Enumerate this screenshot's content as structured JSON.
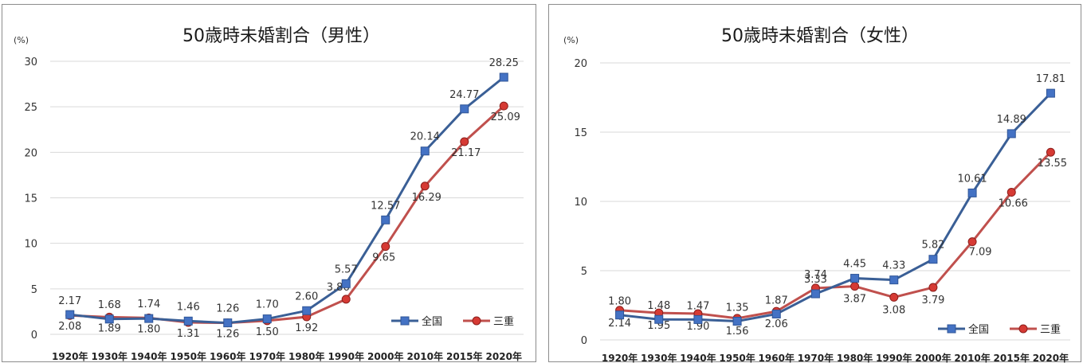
{
  "colors": {
    "national": "#4472c4",
    "national_line": "#3a5f96",
    "mie": "#c0504d",
    "mie_marker": "#d63a34"
  },
  "chart_data": [
    {
      "type": "line",
      "title": "50歳時未婚割合（男性）",
      "unit": "(%)",
      "categories": [
        "1920年",
        "1930年",
        "1940年",
        "1950年",
        "1960年",
        "1970年",
        "1980年",
        "1990年",
        "2000年",
        "2010年",
        "2015年",
        "2020年"
      ],
      "ylim": [
        0,
        30
      ],
      "yticks": [
        "0",
        "5",
        "10",
        "15",
        "20",
        "25",
        "30"
      ],
      "grid": true,
      "legend_position": "bottom-right",
      "series": [
        {
          "name": "全国",
          "values": [
            2.17,
            1.68,
            1.74,
            1.46,
            1.26,
            1.7,
            2.6,
            5.57,
            12.57,
            20.14,
            24.77,
            28.25
          ],
          "labels": [
            "2.17",
            "1.68",
            "1.74",
            "1.46",
            "1.26",
            "1.70",
            "2.60",
            "5.57",
            "12.57",
            "20.14",
            "24.77",
            "28.25"
          ]
        },
        {
          "name": "三重",
          "values": [
            2.08,
            1.89,
            1.8,
            1.31,
            1.26,
            1.5,
            1.92,
            3.86,
            9.65,
            16.29,
            21.17,
            25.09
          ],
          "labels": [
            "2.08",
            "1.89",
            "1.80",
            "1.31",
            "1.26",
            "1.50",
            "1.92",
            "3.86",
            "9.65",
            "16.29",
            "21.17",
            "25.09"
          ]
        }
      ]
    },
    {
      "type": "line",
      "title": "50歳時未婚割合（女性）",
      "unit": "(%)",
      "categories": [
        "1920年",
        "1930年",
        "1940年",
        "1950年",
        "1960年",
        "1970年",
        "1980年",
        "1990年",
        "2000年",
        "2010年",
        "2015年",
        "2020年"
      ],
      "ylim": [
        0,
        20
      ],
      "yticks": [
        "0",
        "5",
        "10",
        "15",
        "20"
      ],
      "grid": true,
      "legend_position": "bottom-right",
      "series": [
        {
          "name": "全国",
          "values": [
            1.8,
            1.48,
            1.47,
            1.35,
            1.87,
            3.33,
            4.45,
            4.33,
            5.82,
            10.61,
            14.89,
            17.81
          ],
          "labels": [
            "1.80",
            "1.48",
            "1.47",
            "1.35",
            "1.87",
            "3.33",
            "4.45",
            "4.33",
            "5.82",
            "10.61",
            "14.89",
            "17.81"
          ]
        },
        {
          "name": "三重",
          "values": [
            2.14,
            1.95,
            1.9,
            1.56,
            2.06,
            3.74,
            3.87,
            3.08,
            3.79,
            7.09,
            10.66,
            13.55
          ],
          "labels": [
            "2.14",
            "1.95",
            "1.90",
            "1.56",
            "2.06",
            "3.74",
            "3.87",
            "3.08",
            "3.79",
            "7.09",
            "10.66",
            "13.55"
          ]
        }
      ]
    }
  ]
}
